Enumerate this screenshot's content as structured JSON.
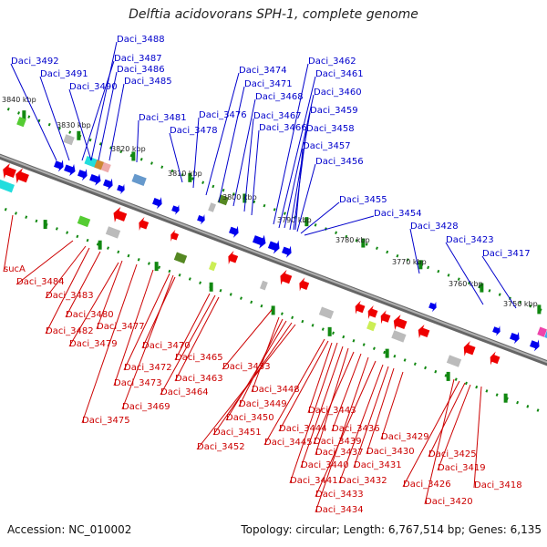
{
  "title": "Delftia acidovorans SPH-1, complete genome",
  "footer": {
    "accession": "Accession: NC_010002",
    "stats": "Topology: circular; Length: 6,767,514 bp; Genes: 6,135"
  },
  "colors": {
    "forward_label": "#0000cc",
    "reverse_label": "#cc0000",
    "backbone": "#888888",
    "tick": "#118811"
  },
  "kbp_marks": [
    "3840 kbp",
    "3830 kbp",
    "3820 kbp",
    "3810 kbp",
    "3800 kbp",
    "3790 kbp",
    "3780 kbp",
    "3770 kbp",
    "3760 kbp",
    "3750 kbp"
  ],
  "forward_labels": [
    "Daci_3488",
    "Daci_3492",
    "Daci_3487",
    "Daci_3491",
    "Daci_3486",
    "Daci_3490",
    "Daci_3485",
    "Daci_3481",
    "Daci_3478",
    "Daci_3476",
    "Daci_3474",
    "Daci_3471",
    "Daci_3468",
    "Daci_3467",
    "Daci_3466",
    "Daci_3462",
    "Daci_3461",
    "Daci_3460",
    "Daci_3459",
    "Daci_3458",
    "Daci_3457",
    "Daci_3456",
    "Daci_3455",
    "Daci_3454",
    "Daci_3428",
    "Daci_3423",
    "Daci_3417"
  ],
  "reverse_labels": [
    "sucA",
    "Daci_3484",
    "Daci_3483",
    "Daci_3480",
    "Daci_3482",
    "Daci_3477",
    "Daci_3479",
    "Daci_3470",
    "Daci_3472",
    "Daci_3465",
    "Daci_3473",
    "Daci_3463",
    "Daci_3464",
    "Daci_3469",
    "Daci_3475",
    "Daci_3453",
    "Daci_3448",
    "Daci_3449",
    "Daci_3450",
    "Daci_3451",
    "Daci_3452",
    "Daci_3443",
    "Daci_3444",
    "Daci_3445",
    "Daci_3436",
    "Daci_3439",
    "Daci_3437",
    "Daci_3440",
    "Daci_3441",
    "Daci_3433",
    "Daci_3434",
    "Daci_3432",
    "Daci_3431",
    "Daci_3430",
    "Daci_3429",
    "Daci_3425",
    "Daci_3426",
    "Daci_3419",
    "Daci_3420",
    "Daci_3418"
  ]
}
